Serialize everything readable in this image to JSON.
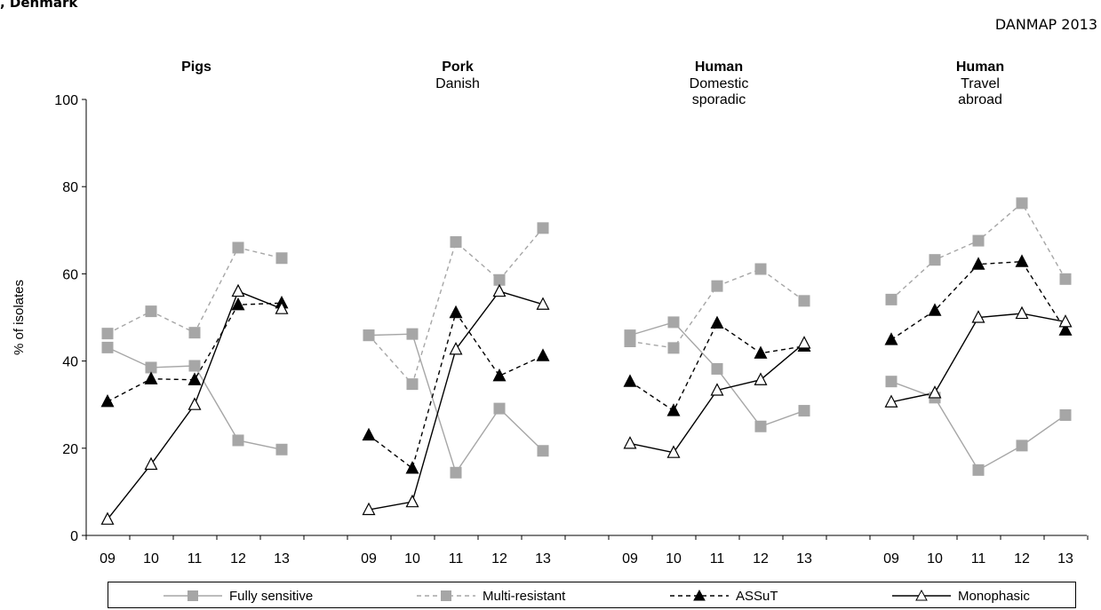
{
  "header": {
    "left_text": ", Denmark",
    "right_text": "DANMAP 2013"
  },
  "chart_data": {
    "type": "line",
    "ylabel": "% of isolates",
    "ylim": [
      0,
      100
    ],
    "yticks": [
      0,
      20,
      40,
      60,
      80,
      100
    ],
    "categories": [
      "09",
      "10",
      "11",
      "12",
      "13"
    ],
    "groups": [
      {
        "title": "Pigs",
        "subtitle": [],
        "series": [
          {
            "name": "Fully sensitive",
            "values": [
              43.1,
              38.5,
              38.9,
              21.8,
              19.7
            ]
          },
          {
            "name": "Multi-resistant",
            "values": [
              46.3,
              51.4,
              46.5,
              66.0,
              63.6
            ]
          },
          {
            "name": "ASSuT",
            "values": [
              30.7,
              35.9,
              35.7,
              52.9,
              53.3
            ]
          },
          {
            "name": "Monophasic",
            "values": [
              3.7,
              16.3,
              30.0,
              56.0,
              52.0
            ]
          }
        ]
      },
      {
        "title": "Pork",
        "subtitle": [
          "Danish"
        ],
        "series": [
          {
            "name": "Fully sensitive",
            "values": [
              45.9,
              46.2,
              14.4,
              29.1,
              19.4
            ]
          },
          {
            "name": "Multi-resistant",
            "values": [
              45.9,
              34.7,
              67.3,
              58.6,
              70.5
            ]
          },
          {
            "name": "ASSuT",
            "values": [
              23.0,
              15.4,
              51.1,
              36.6,
              41.2
            ]
          },
          {
            "name": "Monophasic",
            "values": [
              5.9,
              7.7,
              42.7,
              56.0,
              53.0
            ]
          }
        ]
      },
      {
        "title": "Human",
        "subtitle": [
          "Domestic",
          "sporadic"
        ],
        "series": [
          {
            "name": "Fully sensitive",
            "values": [
              45.9,
              48.9,
              38.2,
              25.0,
              28.6
            ]
          },
          {
            "name": "Multi-resistant",
            "values": [
              44.5,
              43.0,
              57.2,
              61.1,
              53.8
            ]
          },
          {
            "name": "ASSuT",
            "values": [
              35.3,
              28.6,
              48.7,
              41.8,
              43.4
            ]
          },
          {
            "name": "Monophasic",
            "values": [
              21.1,
              19.0,
              33.3,
              35.7,
              44.1
            ]
          }
        ]
      },
      {
        "title": "Human",
        "subtitle": [
          "Travel",
          "abroad"
        ],
        "series": [
          {
            "name": "Fully sensitive",
            "values": [
              35.3,
              31.6,
              15.0,
              20.6,
              27.6
            ]
          },
          {
            "name": "Multi-resistant",
            "values": [
              54.1,
              63.2,
              67.6,
              76.2,
              58.8
            ]
          },
          {
            "name": "ASSuT",
            "values": [
              44.9,
              51.6,
              62.2,
              62.8,
              47.1
            ]
          },
          {
            "name": "Monophasic",
            "values": [
              30.6,
              32.7,
              50.0,
              50.9,
              49.0
            ]
          }
        ]
      }
    ],
    "legend": {
      "position": "bottom",
      "items": [
        {
          "name": "Fully sensitive",
          "color": "#a6a6a6",
          "line": "solid",
          "marker": "square"
        },
        {
          "name": "Multi-resistant",
          "color": "#a6a6a6",
          "line": "dashed",
          "marker": "square"
        },
        {
          "name": "ASSuT",
          "color": "#000000",
          "line": "dashed",
          "marker": "filled-triangle"
        },
        {
          "name": "Monophasic",
          "color": "#000000",
          "line": "solid",
          "marker": "open-triangle"
        }
      ]
    }
  }
}
